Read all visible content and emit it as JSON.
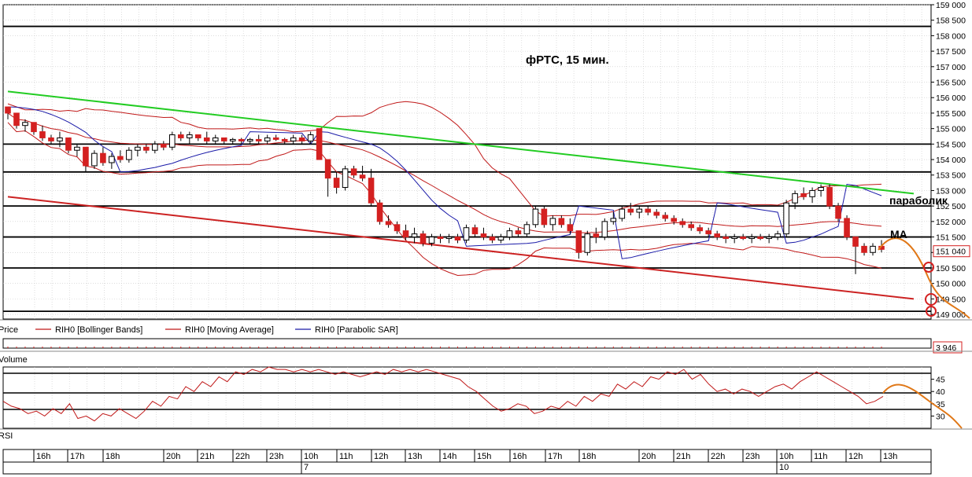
{
  "chart_data": {
    "type": "candlestick",
    "title": "фРТС,   15 мин.",
    "instrument": "RIH0",
    "price_axis": {
      "ylim": [
        148850,
        159000
      ],
      "ticks": [
        "159 000",
        "158 500",
        "158 000",
        "157 500",
        "157 000",
        "156 500",
        "156 000",
        "155 500",
        "155 000",
        "154 500",
        "154 000",
        "153 500",
        "153 000",
        "152 500",
        "152 000",
        "151 500",
        "151 000",
        "150 500",
        "150 000",
        "149 500",
        "149 000"
      ],
      "last_price_label": "151 040"
    },
    "horizontal_levels": [
      158300,
      154500,
      153600,
      152500,
      151500,
      150500,
      149100
    ],
    "candles": [
      [
        155700,
        155700,
        155300,
        155500
      ],
      [
        155500,
        155500,
        155000,
        155100
      ],
      [
        155100,
        155300,
        154900,
        155200
      ],
      [
        155200,
        155200,
        154800,
        154900
      ],
      [
        154900,
        155100,
        154600,
        154700
      ],
      [
        154700,
        154800,
        154500,
        154600
      ],
      [
        154600,
        154900,
        154400,
        154700
      ],
      [
        154700,
        154700,
        154200,
        154300
      ],
      [
        154300,
        154500,
        154100,
        154400
      ],
      [
        154400,
        154400,
        153600,
        153800
      ],
      [
        153800,
        154300,
        153700,
        154200
      ],
      [
        154200,
        154400,
        153800,
        153900
      ],
      [
        153900,
        154200,
        153700,
        154100
      ],
      [
        154100,
        154300,
        153900,
        154000
      ],
      [
        154000,
        154400,
        153900,
        154300
      ],
      [
        154300,
        154500,
        154100,
        154400
      ],
      [
        154400,
        154500,
        154200,
        154300
      ],
      [
        154300,
        154600,
        154200,
        154500
      ],
      [
        154500,
        154600,
        154300,
        154400
      ],
      [
        154400,
        154900,
        154300,
        154800
      ],
      [
        154800,
        154900,
        154600,
        154700
      ],
      [
        154700,
        154900,
        154500,
        154800
      ],
      [
        154800,
        154800,
        154600,
        154700
      ],
      [
        154700,
        154900,
        154500,
        154600
      ],
      [
        154600,
        154800,
        154500,
        154700
      ],
      [
        154700,
        154700,
        154500,
        154600
      ],
      [
        154600,
        154700,
        154500,
        154650
      ],
      [
        154650,
        154700,
        154500,
        154600
      ],
      [
        154600,
        154700,
        154500,
        154650
      ],
      [
        154650,
        154800,
        154500,
        154600
      ],
      [
        154600,
        154800,
        154500,
        154700
      ],
      [
        154700,
        154800,
        154600,
        154650
      ],
      [
        154650,
        154700,
        154500,
        154600
      ],
      [
        154600,
        154800,
        154500,
        154700
      ],
      [
        154700,
        154800,
        154500,
        154600
      ],
      [
        154600,
        154900,
        154500,
        154800
      ],
      [
        155000,
        155000,
        154000,
        154000
      ],
      [
        154000,
        154000,
        152800,
        153400
      ],
      [
        153400,
        153600,
        152900,
        153100
      ],
      [
        153100,
        153800,
        153000,
        153700
      ],
      [
        153700,
        153800,
        153400,
        153500
      ],
      [
        153500,
        153800,
        153300,
        153400
      ],
      [
        153400,
        153700,
        152500,
        152600
      ],
      [
        152600,
        152700,
        151900,
        152000
      ],
      [
        152000,
        152200,
        151800,
        151900
      ],
      [
        151900,
        152000,
        151600,
        151700
      ],
      [
        151700,
        151900,
        151400,
        151500
      ],
      [
        151500,
        151800,
        151300,
        151600
      ],
      [
        151600,
        151700,
        151200,
        151300
      ],
      [
        151300,
        151600,
        151200,
        151500
      ],
      [
        151500,
        151600,
        151300,
        151450
      ],
      [
        151450,
        151600,
        151300,
        151500
      ],
      [
        151500,
        151600,
        151300,
        151400
      ],
      [
        151400,
        151900,
        151300,
        151800
      ],
      [
        151800,
        151900,
        151500,
        151600
      ],
      [
        151600,
        151800,
        151400,
        151500
      ],
      [
        151500,
        151600,
        151300,
        151400
      ],
      [
        151400,
        151600,
        151300,
        151500
      ],
      [
        151500,
        151800,
        151400,
        151700
      ],
      [
        151700,
        151800,
        151500,
        151600
      ],
      [
        151600,
        152000,
        151500,
        151900
      ],
      [
        151900,
        152500,
        151800,
        152400
      ],
      [
        152400,
        152500,
        151800,
        151900
      ],
      [
        151900,
        152200,
        151700,
        152100
      ],
      [
        152100,
        152200,
        151800,
        151900
      ],
      [
        151900,
        152100,
        151600,
        151700
      ],
      [
        151700,
        151700,
        150800,
        151000
      ],
      [
        151000,
        151700,
        150900,
        151600
      ],
      [
        151600,
        151800,
        151300,
        151500
      ],
      [
        151500,
        152100,
        151400,
        152000
      ],
      [
        152000,
        152300,
        151900,
        152100
      ],
      [
        152100,
        152500,
        152000,
        152400
      ],
      [
        152400,
        152600,
        152200,
        152300
      ],
      [
        152300,
        152500,
        152100,
        152400
      ],
      [
        152400,
        152500,
        152200,
        152300
      ],
      [
        152300,
        152400,
        152100,
        152200
      ],
      [
        152200,
        152300,
        152000,
        152100
      ],
      [
        152100,
        152200,
        151900,
        152000
      ],
      [
        152000,
        152100,
        151800,
        151900
      ],
      [
        151900,
        152000,
        151700,
        151800
      ],
      [
        151800,
        151900,
        151600,
        151700
      ],
      [
        151700,
        151800,
        151500,
        151600
      ],
      [
        151600,
        151700,
        151400,
        151500
      ],
      [
        151500,
        151600,
        151300,
        151450
      ],
      [
        151450,
        151600,
        151300,
        151500
      ],
      [
        151500,
        151600,
        151400,
        151450
      ],
      [
        151450,
        151600,
        151300,
        151500
      ],
      [
        151500,
        151600,
        151400,
        151450
      ],
      [
        151450,
        151600,
        151300,
        151500
      ],
      [
        151500,
        151700,
        151400,
        151600
      ],
      [
        151600,
        152700,
        151500,
        152600
      ],
      [
        152600,
        153000,
        152400,
        152900
      ],
      [
        152900,
        153100,
        152700,
        152800
      ],
      [
        152800,
        153100,
        152600,
        153000
      ],
      [
        153000,
        153200,
        152800,
        153100
      ],
      [
        153100,
        153200,
        152400,
        152500
      ],
      [
        152500,
        152600,
        152000,
        152100
      ],
      [
        152100,
        152200,
        151400,
        151500
      ],
      [
        151500,
        151500,
        150300,
        151200
      ],
      [
        151200,
        151300,
        150900,
        151000
      ],
      [
        151000,
        151300,
        150900,
        151200
      ],
      [
        151200,
        151400,
        151000,
        151100
      ]
    ],
    "trendlines": [
      {
        "color": "#22cc22",
        "from": [
          0,
          156200
        ],
        "to": [
          104,
          152900
        ]
      },
      {
        "color": "#cc2222",
        "from": [
          0,
          152800
        ],
        "to": [
          104,
          149500
        ]
      }
    ],
    "annotations": [
      {
        "text": "параболик"
      },
      {
        "text": "MA"
      }
    ],
    "legend": [
      "Price",
      "RIH0 [Bollinger Bands]",
      "RIH0 [Moving Average]",
      "RIH0 [Parabolic SAR]"
    ],
    "volume_panel": {
      "label": "Volume",
      "last_value": "3 946"
    },
    "rsi_panel": {
      "label": "RSI",
      "ylim": [
        25,
        50
      ],
      "ticks": [
        "45",
        "40",
        "35",
        "30"
      ],
      "values": [
        36,
        34,
        33,
        31,
        32,
        30,
        33,
        31,
        35,
        29,
        30,
        28,
        31,
        30,
        33,
        31,
        29,
        32,
        36,
        34,
        38,
        37,
        42,
        40,
        44,
        42,
        46,
        44,
        48,
        47,
        49,
        48,
        50,
        49,
        49,
        48,
        49,
        48,
        49,
        48,
        47,
        48,
        47,
        46,
        47,
        48,
        47,
        49,
        48,
        49,
        48,
        49,
        48,
        47,
        46,
        45,
        42,
        40,
        37,
        34,
        32,
        33,
        35,
        34,
        31,
        32,
        34,
        33,
        36,
        34,
        38,
        36,
        39,
        38,
        43,
        41,
        44,
        42,
        46,
        45,
        48,
        47,
        49,
        45,
        47,
        43,
        40,
        41,
        39,
        41,
        40,
        38,
        40,
        42,
        43,
        41,
        44,
        46,
        48,
        46,
        44,
        42,
        40,
        38,
        35,
        36,
        38
      ]
    },
    "time_axis": {
      "labels": [
        "16h",
        "17h",
        "18h",
        "20h",
        "21h",
        "22h",
        "23h",
        "10h",
        "11h",
        "12h",
        "13h",
        "14h",
        "15h",
        "16h",
        "17h",
        "18h",
        "20h",
        "21h",
        "22h",
        "23h",
        "10h",
        "11h",
        "12h",
        "13h"
      ],
      "dates": [
        "7",
        "10"
      ]
    }
  }
}
